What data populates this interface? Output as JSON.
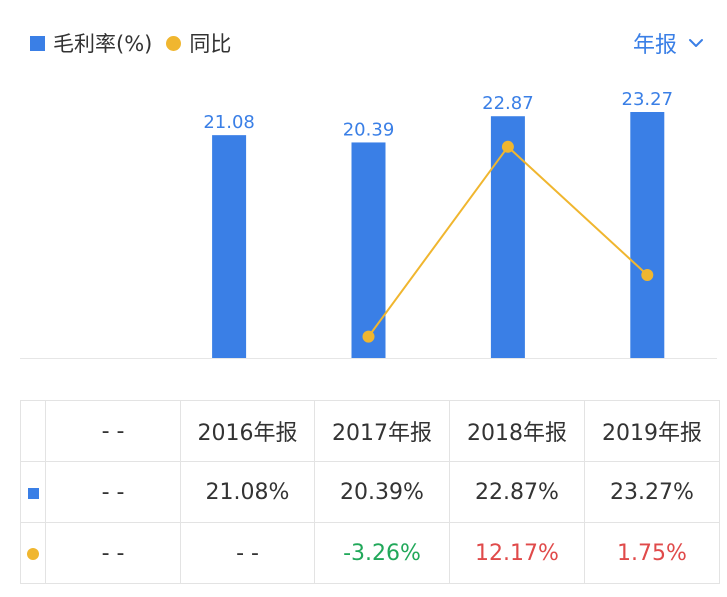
{
  "legend": {
    "series1": "毛利率(%)",
    "series2": "同比",
    "series1_icon": "blue-square-marker",
    "series2_icon": "orange-dot-marker"
  },
  "period_selector": {
    "label": "年报",
    "icon": "chevron-down-icon"
  },
  "colors": {
    "bar": "#3a7fe6",
    "line": "#f0b62f",
    "bar_label": "#3a7fe6",
    "accent_blue": "#3a7fe6",
    "positive": "#e04a4a",
    "negative": "#21a85a",
    "gridline": "#e6e6e6"
  },
  "chart_data": {
    "type": "bar",
    "categories": [
      "",
      "2016年报",
      "2017年报",
      "2018年报",
      "2019年报"
    ],
    "series": [
      {
        "name": "毛利率(%)",
        "type": "bar",
        "values": [
          null,
          21.08,
          20.39,
          22.87,
          23.27
        ],
        "labels": [
          "",
          "21.08",
          "20.39",
          "22.87",
          "23.27"
        ]
      },
      {
        "name": "同比",
        "type": "line",
        "values": [
          null,
          null,
          -3.26,
          12.17,
          1.75
        ]
      }
    ],
    "bar_ylim": [
      0,
      23.27
    ],
    "line_ylim": [
      -5,
      15
    ],
    "grid": false,
    "legend": "top-left"
  },
  "table": {
    "header": [
      "",
      "- -",
      "2016年报",
      "2017年报",
      "2018年报",
      "2019年报"
    ],
    "rows": [
      {
        "marker": "blue-square",
        "cells": [
          "- -",
          "21.08%",
          "20.39%",
          "22.87%",
          "23.27%"
        ],
        "tones": [
          "neutral",
          "neutral",
          "neutral",
          "neutral",
          "neutral"
        ]
      },
      {
        "marker": "orange-dot",
        "cells": [
          "- -",
          "- -",
          "-3.26%",
          "12.17%",
          "1.75%"
        ],
        "tones": [
          "neutral",
          "neutral",
          "negative",
          "positive",
          "positive"
        ]
      }
    ]
  }
}
